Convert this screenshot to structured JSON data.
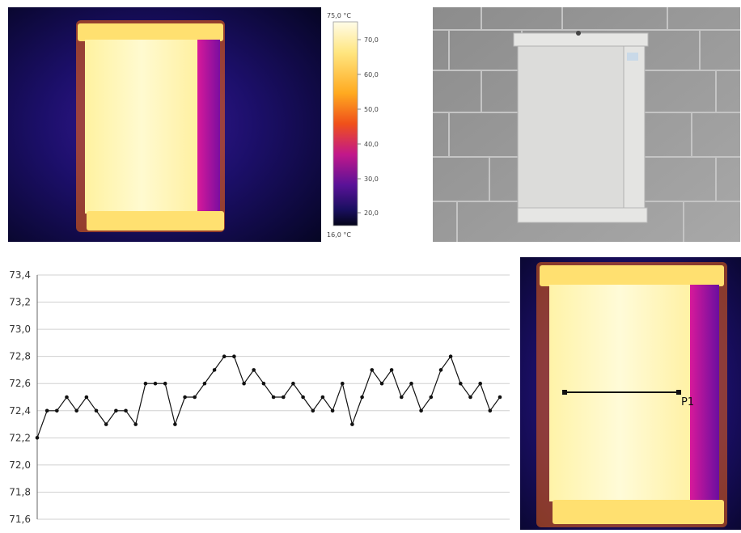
{
  "thermal_scale": {
    "max_label": "75,0 °C",
    "min_label": "16,0 °C",
    "ticks": [
      "70,0",
      "60,0",
      "50,0",
      "40,0",
      "30,0",
      "20,0"
    ]
  },
  "profile": {
    "line_label": "P1"
  },
  "chart_data": {
    "type": "line",
    "title": "",
    "xlabel": "",
    "ylabel": "",
    "ylim": [
      71.6,
      73.4
    ],
    "y_ticks": [
      "73,4",
      "73,2",
      "73,0",
      "72,8",
      "72,6",
      "72,4",
      "72,2",
      "72,0",
      "71,8",
      "71,6"
    ],
    "y_tick_values": [
      73.4,
      73.2,
      73.0,
      72.8,
      72.6,
      72.4,
      72.2,
      72.0,
      71.8,
      71.6
    ],
    "grid": true,
    "series": [
      {
        "values": [
          72.2,
          72.4,
          72.4,
          72.5,
          72.4,
          72.5,
          72.4,
          72.3,
          72.4,
          72.4,
          72.3,
          72.6,
          72.6,
          72.6,
          72.3,
          72.5,
          72.5,
          72.6,
          72.7,
          72.8,
          72.8,
          72.6,
          72.7,
          72.6,
          72.5,
          72.5,
          72.6,
          72.5,
          72.4,
          72.5,
          72.4,
          72.6,
          72.3,
          72.5,
          72.7,
          72.6,
          72.7,
          72.5,
          72.6,
          72.4,
          72.5,
          72.7,
          72.8,
          72.6,
          72.5,
          72.6,
          72.4,
          72.5
        ]
      }
    ]
  }
}
